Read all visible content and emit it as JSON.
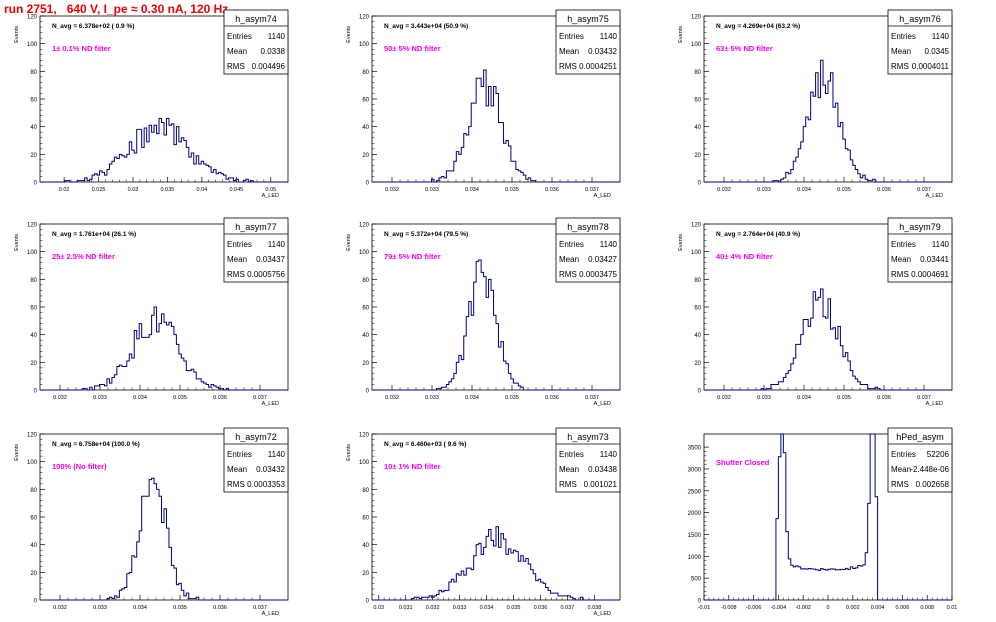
{
  "page_title": "run 2751,   640 V, I_pe ≈ 0.30 nA, 120 Hz",
  "colors": {
    "title": "#ee0000",
    "histogram": "#000080",
    "annotation": "#ee00ee",
    "text": "#000000"
  },
  "chart_data": [
    {
      "type": "histogram",
      "name": "h_asym74",
      "header": "N_avg = 6.378e+02 ( 0.9 %)",
      "annotation": "1± 0.1% ND filter",
      "stats": {
        "Entries": "1140",
        "Mean": "0.0338",
        "RMS": "0.004496"
      },
      "ylabel": "Events",
      "xlabel": "A_LED",
      "xlim": [
        0.0165,
        0.0525
      ],
      "ylim": [
        0,
        120
      ],
      "xticks": [
        0.02,
        0.025,
        0.03,
        0.035,
        0.04,
        0.045,
        0.05
      ],
      "xtick_labels": [
        "0.02",
        "0.025",
        "0.03",
        "0.035",
        "0.04",
        "0.045",
        "0.05"
      ],
      "yticks": [
        0,
        20,
        40,
        60,
        80,
        100,
        120
      ],
      "mean": 0.0338,
      "sigma": 0.0045,
      "peak": 38,
      "noise": 0.28,
      "seed": 74
    },
    {
      "type": "histogram",
      "name": "h_asym75",
      "header": "N_avg = 3.443e+04 (50.9 %)",
      "annotation": "50± 5% ND filter",
      "stats": {
        "Entries": "1140",
        "Mean": "0.03432",
        "RMS": "0.0004251"
      },
      "ylabel": "Events",
      "xlabel": "A_LED",
      "xlim": [
        0.0315,
        0.0377
      ],
      "ylim": [
        0,
        120
      ],
      "xticks": [
        0.032,
        0.033,
        0.034,
        0.035,
        0.036,
        0.037
      ],
      "xtick_labels": [
        "0.032",
        "0.033",
        "0.034",
        "0.035",
        "0.036",
        "0.037"
      ],
      "yticks": [
        0,
        20,
        40,
        60,
        80,
        100,
        120
      ],
      "mean": 0.03432,
      "sigma": 0.000425,
      "peak": 68,
      "noise": 0.22,
      "seed": 75
    },
    {
      "type": "histogram",
      "name": "h_asym76",
      "header": "N_avg = 4.269e+04 (63.2 %)",
      "annotation": "63± 5% ND filter",
      "stats": {
        "Entries": "1140",
        "Mean": "0.0345",
        "RMS": "0.0004011"
      },
      "ylabel": "Events",
      "xlabel": "A_LED",
      "xlim": [
        0.0315,
        0.0377
      ],
      "ylim": [
        0,
        120
      ],
      "xticks": [
        0.032,
        0.033,
        0.034,
        0.035,
        0.036,
        0.037
      ],
      "xtick_labels": [
        "0.032",
        "0.033",
        "0.034",
        "0.035",
        "0.036",
        "0.037"
      ],
      "yticks": [
        0,
        20,
        40,
        60,
        80,
        100,
        120
      ],
      "mean": 0.0345,
      "sigma": 0.0004,
      "peak": 76,
      "noise": 0.22,
      "seed": 76
    },
    {
      "type": "histogram",
      "name": "h_asym77",
      "header": "N_avg = 1.761e+04 (26.1 %)",
      "annotation": "25± 2.5% ND filter",
      "stats": {
        "Entries": "1140",
        "Mean": "0.03437",
        "RMS": "0.0005756"
      },
      "ylabel": "Events",
      "xlabel": "A_LED",
      "xlim": [
        0.0315,
        0.0377
      ],
      "ylim": [
        0,
        120
      ],
      "xticks": [
        0.032,
        0.033,
        0.034,
        0.035,
        0.036,
        0.037
      ],
      "xtick_labels": [
        "0.032",
        "0.033",
        "0.034",
        "0.035",
        "0.036",
        "0.037"
      ],
      "yticks": [
        0,
        20,
        40,
        60,
        80,
        100,
        120
      ],
      "mean": 0.03437,
      "sigma": 0.000575,
      "peak": 50,
      "noise": 0.25,
      "seed": 77
    },
    {
      "type": "histogram",
      "name": "h_asym78",
      "header": "N_avg = 5.372e+04 (79.5 %)",
      "annotation": "79± 5% ND filter",
      "stats": {
        "Entries": "1140",
        "Mean": "0.03427",
        "RMS": "0.0003475"
      },
      "ylabel": "Events",
      "xlabel": "A_LED",
      "xlim": [
        0.0315,
        0.0377
      ],
      "ylim": [
        0,
        120
      ],
      "xticks": [
        0.032,
        0.033,
        0.034,
        0.035,
        0.036,
        0.037
      ],
      "xtick_labels": [
        "0.032",
        "0.033",
        "0.034",
        "0.035",
        "0.036",
        "0.037"
      ],
      "yticks": [
        0,
        20,
        40,
        60,
        80,
        100,
        120
      ],
      "mean": 0.03427,
      "sigma": 0.000347,
      "peak": 84,
      "noise": 0.2,
      "seed": 78
    },
    {
      "type": "histogram",
      "name": "h_asym79",
      "header": "N_avg = 2.764e+04 (40.9 %)",
      "annotation": "40± 4% ND filter",
      "stats": {
        "Entries": "1140",
        "Mean": "0.03441",
        "RMS": "0.0004691"
      },
      "ylabel": "Events",
      "xlabel": "A_LED",
      "xlim": [
        0.0315,
        0.0377
      ],
      "ylim": [
        0,
        120
      ],
      "xticks": [
        0.032,
        0.033,
        0.034,
        0.035,
        0.036,
        0.037
      ],
      "xtick_labels": [
        "0.032",
        "0.033",
        "0.034",
        "0.035",
        "0.036",
        "0.037"
      ],
      "yticks": [
        0,
        20,
        40,
        60,
        80,
        100,
        120
      ],
      "mean": 0.03441,
      "sigma": 0.00047,
      "peak": 62,
      "noise": 0.22,
      "seed": 79
    },
    {
      "type": "histogram",
      "name": "h_asym72",
      "header": "N_avg = 6.758e+04 (100.0 %)",
      "annotation": "100% (No filter)",
      "stats": {
        "Entries": "1140",
        "Mean": "0.03432",
        "RMS": "0.0003353"
      },
      "ylabel": "Events",
      "xlabel": "A_LED",
      "xlim": [
        0.0315,
        0.0377
      ],
      "ylim": [
        0,
        120
      ],
      "xticks": [
        0.032,
        0.033,
        0.034,
        0.035,
        0.036,
        0.037
      ],
      "xtick_labels": [
        "0.032",
        "0.033",
        "0.034",
        "0.035",
        "0.036",
        "0.037"
      ],
      "yticks": [
        0,
        20,
        40,
        60,
        80,
        100,
        120
      ],
      "mean": 0.03432,
      "sigma": 0.000335,
      "peak": 86,
      "noise": 0.2,
      "seed": 72
    },
    {
      "type": "histogram",
      "name": "h_asym73",
      "header": "N_avg = 6.460e+03 ( 9.6 %)",
      "annotation": "10± 1% ND filter",
      "stats": {
        "Entries": "1140",
        "Mean": "0.03438",
        "RMS": "0.001021"
      },
      "ylabel": "Events",
      "xlabel": "A_LED",
      "xlim": [
        0.02975,
        0.03895
      ],
      "ylim": [
        0,
        120
      ],
      "xticks": [
        0.03,
        0.031,
        0.032,
        0.033,
        0.034,
        0.035,
        0.036,
        0.037,
        0.038
      ],
      "xtick_labels": [
        "0.03",
        "0.031",
        "0.032",
        "0.033",
        "0.034",
        "0.035",
        "0.036",
        "0.037",
        "0.038"
      ],
      "yticks": [
        0,
        20,
        40,
        60,
        80,
        100,
        120
      ],
      "mean": 0.0344,
      "sigma": 0.00102,
      "peak": 44,
      "noise": 0.25,
      "seed": 73
    },
    {
      "type": "histogram",
      "name": "hPed_asym",
      "header": "",
      "annotation": "Shutter Closed",
      "stats": {
        "Entries": "52206",
        "Mean": "-2.448e-06",
        "RMS": "0.002658"
      },
      "ylabel": "",
      "xlabel": "",
      "xlim": [
        -0.01,
        0.01
      ],
      "ylim": [
        0,
        3800
      ],
      "xticks": [
        -0.01,
        -0.008,
        -0.006,
        -0.004,
        -0.002,
        0,
        0.002,
        0.004,
        0.006,
        0.008,
        0.01
      ],
      "xtick_labels": [
        "-0.01",
        "-0.008",
        "-0.006",
        "-0.004",
        "-0.002",
        "0",
        "0.002",
        "0.004",
        "0.006",
        "0.008",
        "0.01"
      ],
      "yticks": [
        0,
        500,
        1000,
        1500,
        2000,
        2500,
        3000,
        3500
      ],
      "pedestal": true,
      "peaks": [
        {
          "center": -0.0037,
          "height": 3550
        },
        {
          "center": 0.0036,
          "height": 3300
        }
      ],
      "floor": 700,
      "edge_low": -0.0041,
      "edge_high": 0.004,
      "seed": 90
    }
  ]
}
